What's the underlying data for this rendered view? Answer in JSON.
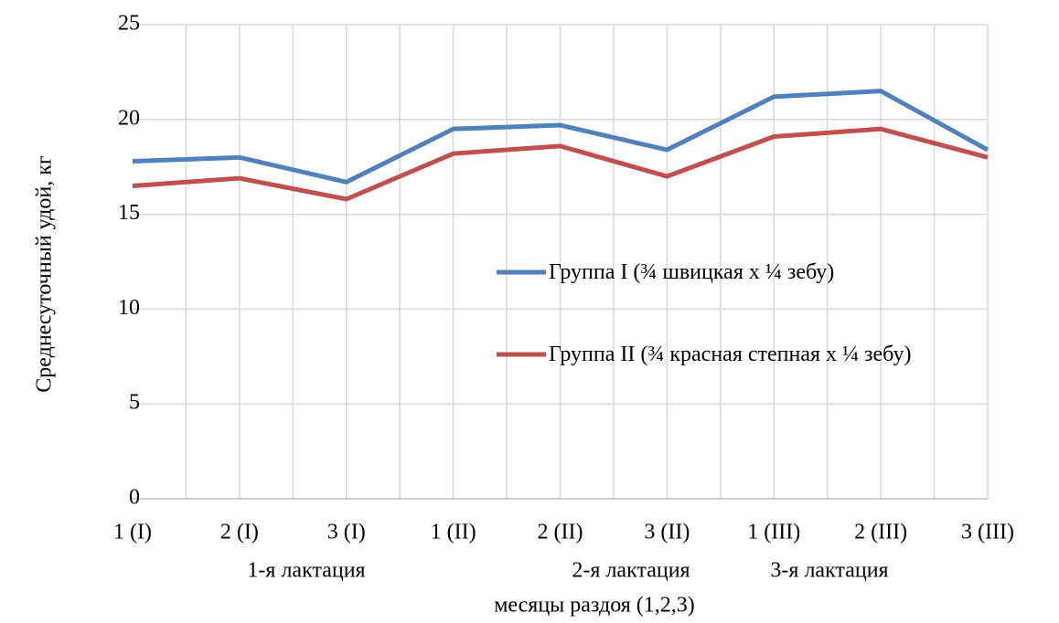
{
  "chart_data": {
    "type": "line",
    "categories": [
      "1 (I)",
      "2 (I)",
      "3 (I)",
      "1 (II)",
      "2 (II)",
      "3 (II)",
      "1 (III)",
      "2 (III)",
      "3 (III)"
    ],
    "group_labels": [
      "1-я лактация",
      "2-я лактация",
      "3-я лактация"
    ],
    "x_label": "месяцы раздоя (1,2,3)",
    "y_label": "Среднесуточный удой, кг",
    "series": [
      {
        "name": "Группа I (¾ швицкая х ¼ зебу)",
        "color": "#4f81bd",
        "values": [
          17.8,
          18.0,
          16.7,
          19.5,
          19.7,
          18.4,
          21.2,
          21.5,
          18.4
        ]
      },
      {
        "name": "Группа II (¾ красная степная х ¼ зебу)",
        "color": "#c0504d",
        "values": [
          16.5,
          16.9,
          15.8,
          18.2,
          18.6,
          17.0,
          19.1,
          19.5,
          18.0
        ]
      }
    ],
    "ylim": [
      0,
      25
    ],
    "yticks": [
      0,
      5,
      10,
      15,
      20,
      25
    ],
    "grid": true,
    "legend": "inside"
  }
}
